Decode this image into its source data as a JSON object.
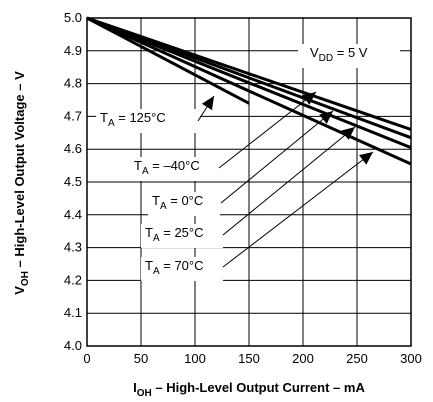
{
  "chart_data": {
    "type": "line",
    "xlabel": {
      "main": "I",
      "sub": "OH",
      "rest": " – High-Level Output Current – mA"
    },
    "ylabel": {
      "main": "V",
      "sub": "OH",
      "rest": " – High-Level Output Voltage – V"
    },
    "xlim": [
      0,
      300
    ],
    "ylim": [
      4.0,
      5.0
    ],
    "x_ticks": [
      0,
      50,
      100,
      150,
      200,
      250,
      300
    ],
    "y_ticks": [
      4.0,
      4.1,
      4.2,
      4.3,
      4.4,
      4.5,
      4.6,
      4.7,
      4.8,
      4.9,
      5.0
    ],
    "x_tick_labels": [
      "0",
      "50",
      "100",
      "150",
      "200",
      "250",
      "300"
    ],
    "y_tick_labels": [
      "4.0",
      "4.1",
      "4.2",
      "4.3",
      "4.4",
      "4.5",
      "4.6",
      "4.7",
      "4.8",
      "4.9",
      "5.0"
    ],
    "grid": true,
    "series": [
      {
        "name": "TA = 125°C",
        "x": [
          0,
          150
        ],
        "y": [
          5.0,
          4.74
        ]
      },
      {
        "name": "TA = –40°C",
        "x": [
          0,
          300
        ],
        "y": [
          5.0,
          4.66
        ]
      },
      {
        "name": "TA = 0°C",
        "x": [
          0,
          300
        ],
        "y": [
          5.0,
          4.635
        ]
      },
      {
        "name": "TA = 25°C",
        "x": [
          0,
          300
        ],
        "y": [
          5.0,
          4.605
        ]
      },
      {
        "name": "TA = 70°C",
        "x": [
          0,
          300
        ],
        "y": [
          5.0,
          4.555
        ]
      }
    ],
    "annotations": [
      {
        "id": "vdd",
        "main": "V",
        "sub": "DD",
        "rest": " = 5 V"
      },
      {
        "id": "ta125",
        "main": "T",
        "sub": "A",
        "rest": " = 125°C"
      },
      {
        "id": "ta-40",
        "main": "T",
        "sub": "A",
        "rest": " = –40°C"
      },
      {
        "id": "ta0",
        "main": "T",
        "sub": "A",
        "rest": " = 0°C"
      },
      {
        "id": "ta25",
        "main": "T",
        "sub": "A",
        "rest": " = 25°C"
      },
      {
        "id": "ta70",
        "main": "T",
        "sub": "A",
        "rest": " = 70°C"
      }
    ]
  }
}
